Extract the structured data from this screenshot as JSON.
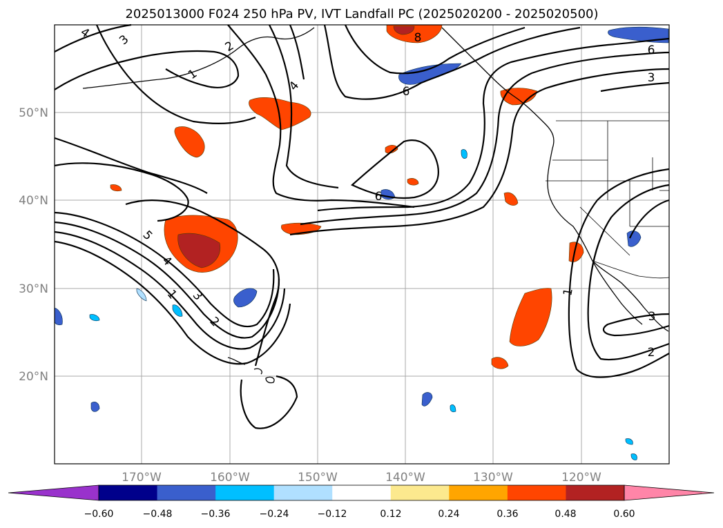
{
  "title": "2025013000 F024 250 hPa PV, IVT Landfall PC (2025020200 - 2025020500)",
  "map": {
    "lat_labels": [
      "50°N",
      "40°N",
      "30°N",
      "20°N"
    ],
    "lon_labels": [
      "170°W",
      "160°W",
      "150°W",
      "140°W",
      "130°W",
      "120°W"
    ],
    "contour_labels": [
      "4",
      "3",
      "2",
      "1",
      "4",
      "6",
      "8",
      "6",
      "6",
      "3",
      "5",
      "4",
      "1",
      "3",
      "2",
      "1",
      "3",
      "2"
    ]
  },
  "colorbar": {
    "ticks": [
      "−0.60",
      "−0.48",
      "−0.36",
      "−0.24",
      "−0.12",
      "0.12",
      "0.24",
      "0.36",
      "0.48",
      "0.60"
    ],
    "colors": [
      "#9932cc",
      "#00008b",
      "#3a5fcd",
      "#00bfff",
      "#b0e0ff",
      "#ffffff",
      "#fce98e",
      "#ffa500",
      "#ff4500",
      "#b22222",
      "#ff85a8"
    ]
  }
}
